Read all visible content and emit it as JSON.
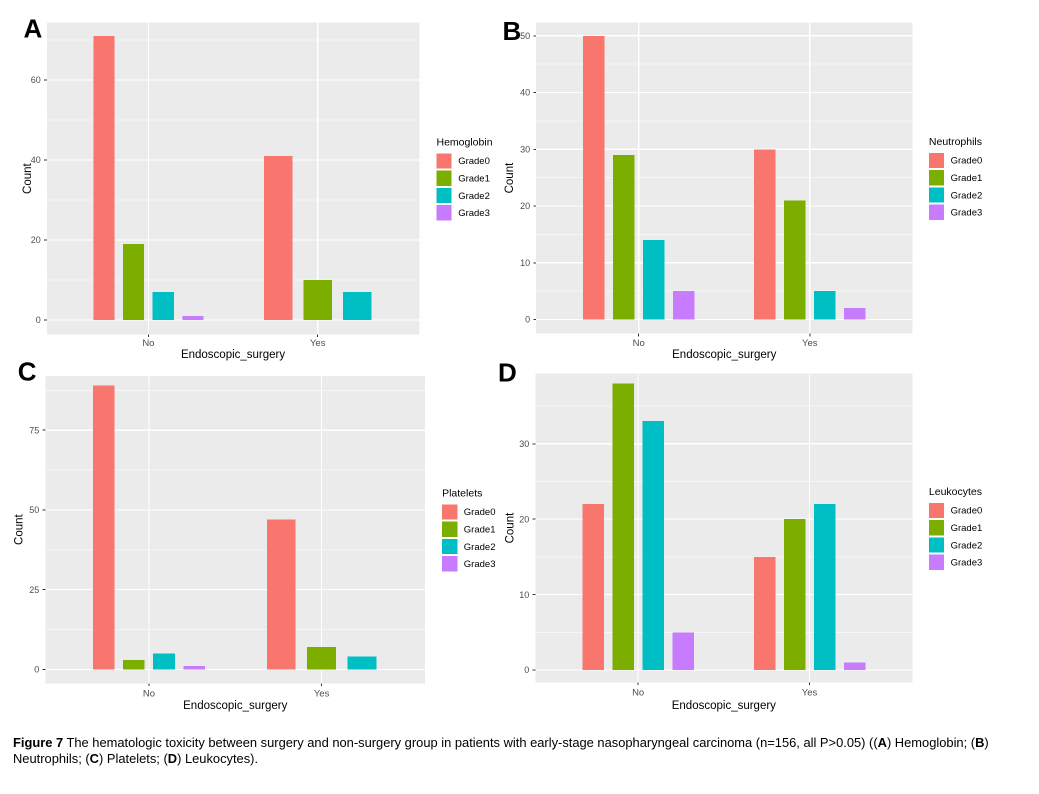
{
  "figure_title": "Figure 7",
  "caption": {
    "lines": [
      [
        {
          "t": "Figure 7",
          "b": true
        },
        {
          "t": " The hematologic toxicity between surgery and non-surgery group in patients with early-stage nasopharyngeal carcinoma (n=156, all P>0.05) ((",
          "b": false
        },
        {
          "t": "A",
          "b": true
        },
        {
          "t": ") Hemoglobin; (",
          "b": false
        },
        {
          "t": "B",
          "b": true
        },
        {
          "t": ")",
          "b": false
        }
      ],
      [
        {
          "t": "Neutrophils; (",
          "b": false
        },
        {
          "t": "C",
          "b": true
        },
        {
          "t": ") Platelets; (",
          "b": false
        },
        {
          "t": "D",
          "b": true
        },
        {
          "t": ") Leukocytes).",
          "b": false
        }
      ]
    ]
  },
  "palette": {
    "Grade0": "#F8766D",
    "Grade1": "#7CAE00",
    "Grade2": "#00BFC4",
    "Grade3": "#C77CFF"
  },
  "style": {
    "panel_bg": "#EBEBEB",
    "grid_color": "#FFFFFF",
    "tick_label_color": "#4D4D4D",
    "tick_mark_color": "#333333",
    "text_color": "#000000"
  },
  "chart_data": [
    {
      "type": "bar",
      "panel": "A",
      "legend_title": "Hemoglobin",
      "xlabel": "Endoscopic_surgery",
      "ylabel": "Count",
      "legend_position": "right",
      "grid": true,
      "categories": [
        "No",
        "Yes"
      ],
      "legend_labels": [
        "Grade0",
        "Grade1",
        "Grade2",
        "Grade3"
      ],
      "series": [
        {
          "name": "Grade0",
          "values": [
            71,
            41
          ]
        },
        {
          "name": "Grade1",
          "values": [
            19,
            10
          ]
        },
        {
          "name": "Grade2",
          "values": [
            7,
            7
          ]
        },
        {
          "name": "Grade3",
          "values": [
            1,
            null
          ]
        }
      ],
      "yticks": [
        0,
        20,
        40,
        60
      ],
      "ylim": [
        -3.62,
        74.29
      ]
    },
    {
      "type": "bar",
      "panel": "B",
      "legend_title": "Neutrophils",
      "xlabel": "Endoscopic_surgery",
      "ylabel": "Count",
      "legend_position": "right",
      "grid": true,
      "categories": [
        "No",
        "Yes"
      ],
      "legend_labels": [
        "Grade0",
        "Grade1",
        "Grade2",
        "Grade3"
      ],
      "series": [
        {
          "name": "Grade0",
          "values": [
            50,
            30
          ]
        },
        {
          "name": "Grade1",
          "values": [
            29,
            21
          ]
        },
        {
          "name": "Grade2",
          "values": [
            14,
            5
          ]
        },
        {
          "name": "Grade3",
          "values": [
            5,
            2
          ]
        }
      ],
      "yticks": [
        0,
        10,
        20,
        30,
        40,
        50
      ],
      "ylim": [
        -2.5,
        52.36
      ]
    },
    {
      "type": "bar",
      "panel": "C",
      "legend_title": "Platelets",
      "xlabel": "Endoscopic_surgery",
      "ylabel": "Count",
      "legend_position": "right",
      "grid": true,
      "categories": [
        "No",
        "Yes"
      ],
      "legend_labels": [
        "Grade0",
        "Grade1",
        "Grade2",
        "Grade3"
      ],
      "series": [
        {
          "name": "Grade0",
          "values": [
            89,
            47
          ]
        },
        {
          "name": "Grade1",
          "values": [
            3,
            7
          ]
        },
        {
          "name": "Grade2",
          "values": [
            5,
            4
          ]
        },
        {
          "name": "Grade3",
          "values": [
            1,
            null
          ]
        }
      ],
      "yticks": [
        0,
        25,
        50,
        75
      ],
      "ylim": [
        -4.36,
        92.03
      ]
    },
    {
      "type": "bar",
      "panel": "D",
      "legend_title": "Leukocytes",
      "xlabel": "Endoscopic_surgery",
      "ylabel": "Count",
      "legend_position": "right",
      "grid": true,
      "categories": [
        "No",
        "Yes"
      ],
      "legend_labels": [
        "Grade0",
        "Grade1",
        "Grade2",
        "Grade3"
      ],
      "series": [
        {
          "name": "Grade0",
          "values": [
            22,
            15
          ]
        },
        {
          "name": "Grade1",
          "values": [
            38,
            20
          ]
        },
        {
          "name": "Grade2",
          "values": [
            33,
            22
          ]
        },
        {
          "name": "Grade3",
          "values": [
            5,
            1
          ]
        }
      ],
      "yticks": [
        0,
        10,
        20,
        30
      ],
      "ylim": [
        -1.66,
        39.31
      ]
    }
  ]
}
